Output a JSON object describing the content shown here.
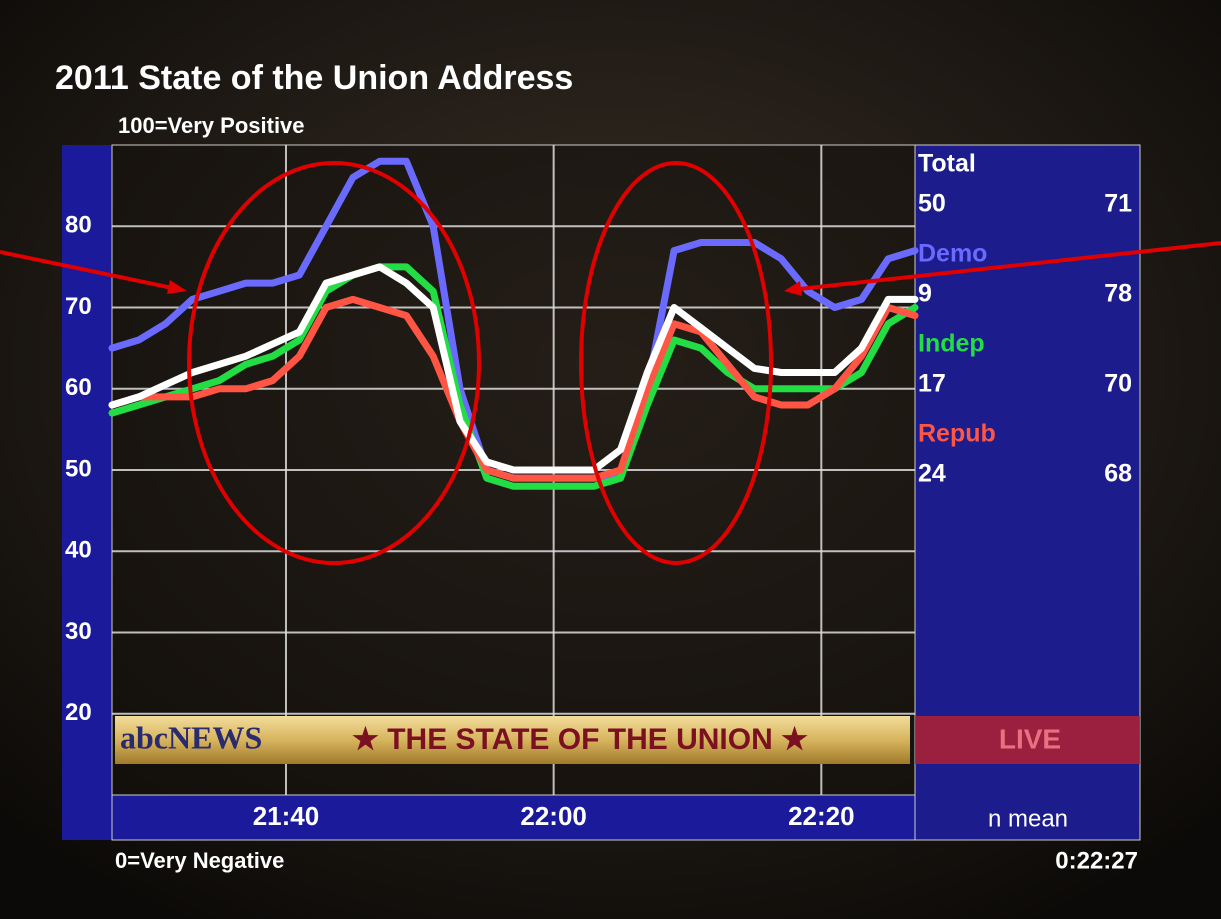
{
  "chart_data": {
    "type": "line",
    "title": "2011 State of the Union Address",
    "subtitle": "100=Very Positive",
    "bottom_label": "0=Very Negative",
    "elapsed": "0:22:27",
    "stats_header": "n mean",
    "ylim": [
      10,
      90
    ],
    "yticks": [
      20,
      30,
      40,
      50,
      60,
      70,
      80
    ],
    "xlim": [
      "21:27",
      "22:27"
    ],
    "xticks": [
      "21:40",
      "22:00",
      "22:20"
    ],
    "grid": true,
    "x": [
      "21:27",
      "21:29",
      "21:31",
      "21:33",
      "21:35",
      "21:37",
      "21:39",
      "21:41",
      "21:43",
      "21:45",
      "21:47",
      "21:49",
      "21:51",
      "21:53",
      "21:55",
      "21:57",
      "21:59",
      "22:01",
      "22:03",
      "22:05",
      "22:07",
      "22:09",
      "22:11",
      "22:13",
      "22:15",
      "22:17",
      "22:19",
      "22:21",
      "22:23",
      "22:25",
      "22:27"
    ],
    "series": [
      {
        "name": "Total",
        "color": "#ffffff",
        "n": 50,
        "mean": 71,
        "values": [
          58,
          59,
          60.5,
          62,
          63,
          64,
          65.5,
          67,
          73,
          74,
          75,
          73,
          70,
          56,
          51,
          50,
          50,
          50,
          50,
          52.5,
          62,
          70,
          67.5,
          65,
          62.5,
          62,
          62,
          62,
          65,
          71,
          71
        ]
      },
      {
        "name": "Demo",
        "color": "#6a6aff",
        "n": 9,
        "mean": 78,
        "values": [
          65,
          66,
          68,
          71,
          72,
          73,
          73,
          74,
          80,
          86,
          88,
          88,
          80,
          60,
          50,
          49,
          49,
          49,
          49,
          49,
          60,
          77,
          78,
          78,
          78,
          76,
          72,
          70,
          71,
          76,
          77
        ]
      },
      {
        "name": "Indep",
        "color": "#22dd44",
        "n": 17,
        "mean": 70,
        "values": [
          57,
          58,
          59,
          60,
          61,
          63,
          64,
          66,
          72,
          74,
          75,
          75,
          72,
          58,
          49,
          48,
          48,
          48,
          48,
          49,
          58,
          66,
          65,
          62,
          60,
          60,
          60,
          60,
          62,
          68,
          70
        ]
      },
      {
        "name": "Repub",
        "color": "#ff5544",
        "n": 24,
        "mean": 68,
        "values": [
          58,
          59,
          59,
          59,
          60,
          60,
          61,
          64,
          70,
          71,
          70,
          69,
          64,
          56,
          50,
          49,
          49,
          49,
          49,
          50,
          60,
          68,
          67,
          63,
          59,
          58,
          58,
          60,
          64,
          70,
          69
        ]
      }
    ]
  },
  "overlay": {
    "logo": "abcNEWS",
    "banner": "★ THE STATE OF THE UNION ★",
    "live": "LIVE"
  }
}
